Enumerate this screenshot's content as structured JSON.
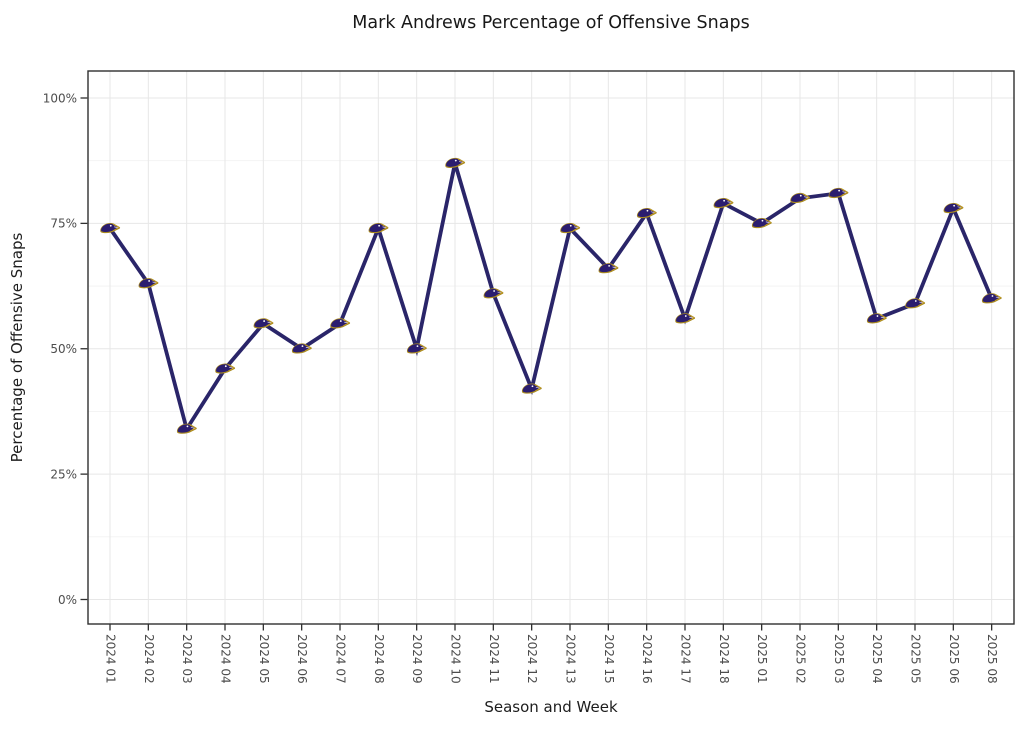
{
  "chart_data": {
    "type": "line",
    "title": "Mark Andrews Percentage of Offensive Snaps",
    "xlabel": "Season and Week",
    "ylabel": "Percentage of Offensive Snaps",
    "categories": [
      "2024 01",
      "2024 02",
      "2024 03",
      "2024 04",
      "2024 05",
      "2024 06",
      "2024 07",
      "2024 08",
      "2024 09",
      "2024 10",
      "2024 11",
      "2024 12",
      "2024 13",
      "2024 15",
      "2024 16",
      "2024 17",
      "2024 18",
      "2025 01",
      "2025 02",
      "2025 03",
      "2025 04",
      "2025 05",
      "2025 06",
      "2025 08"
    ],
    "values": [
      74,
      63,
      34,
      46,
      55,
      50,
      55,
      74,
      50,
      87,
      61,
      42,
      74,
      66,
      77,
      56,
      79,
      75,
      80,
      81,
      56,
      59,
      78,
      60
    ],
    "ylim": [
      0,
      100
    ],
    "yticks": [
      0,
      25,
      50,
      75,
      100
    ],
    "ytick_labels": [
      "0%",
      "25%",
      "50%",
      "75%",
      "100%"
    ],
    "minor_yticks": [
      12.5,
      37.5,
      62.5,
      87.5
    ],
    "grid": "horizontal major+minor, vertical major per category",
    "legend": "none",
    "x_tick_rotation_deg": 90,
    "line_color": "#2a2569",
    "marker": "baltimore-ravens-logo",
    "marker_colors": {
      "gold": "#a98a20",
      "purple": "#2b1d6f",
      "white": "#ffffff"
    }
  }
}
